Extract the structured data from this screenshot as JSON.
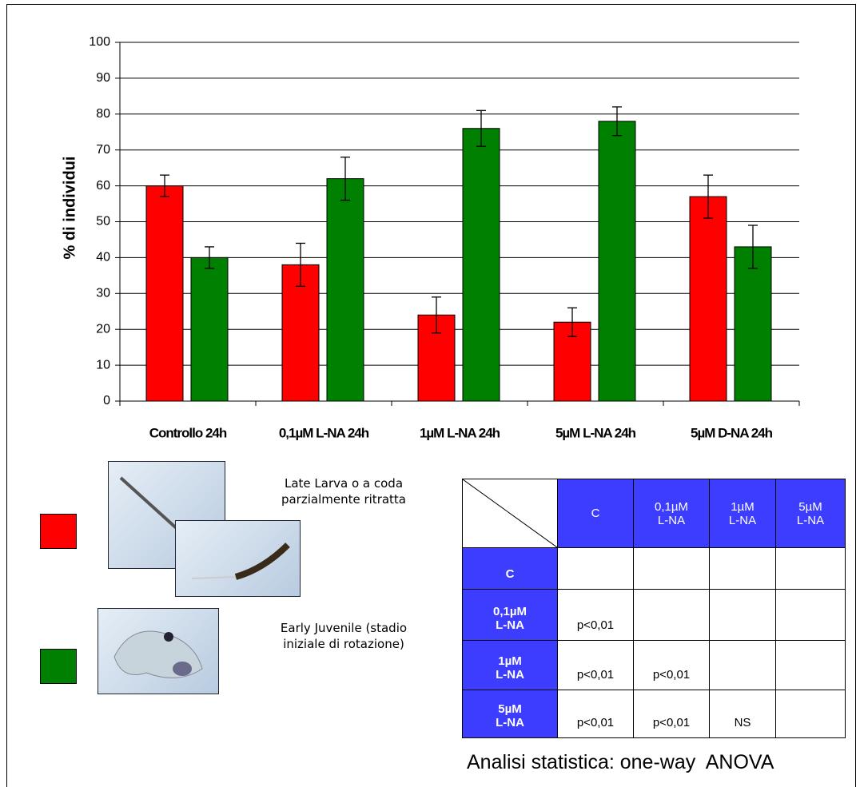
{
  "chart_data": {
    "type": "bar",
    "y_label": "% di individui",
    "categories": [
      "Controllo 24h",
      "0,1µM L-NA 24h",
      "1µM L-NA 24h",
      "5µM L-NA 24h",
      "5µM D-NA 24h"
    ],
    "series": [
      {
        "name": "Late Larva o a coda parzialmente ritratta",
        "color": "#ff0000",
        "values": [
          60,
          38,
          24,
          22,
          57
        ],
        "errors": [
          3,
          6,
          5,
          4,
          6
        ]
      },
      {
        "name": "Early Juvenile (stadio iniziale di rotazione)",
        "color": "#008000",
        "values": [
          40,
          62,
          76,
          78,
          43
        ],
        "errors": [
          3,
          6,
          5,
          4,
          6
        ]
      }
    ],
    "ylim": [
      0,
      100
    ],
    "yticks": [
      0,
      10,
      20,
      30,
      40,
      50,
      60,
      70,
      80,
      90,
      100
    ],
    "grid": true
  },
  "table": {
    "columns": [
      [
        "C"
      ],
      [
        "0,1µM",
        "L-NA"
      ],
      [
        "1µM",
        "L-NA"
      ],
      [
        "5µM",
        "L-NA"
      ]
    ],
    "rows": [
      {
        "header": [
          "C"
        ],
        "cells": [
          null,
          null,
          null,
          null
        ]
      },
      {
        "header": [
          "0,1µM",
          "L-NA"
        ],
        "cells": [
          "p<0,01",
          null,
          null,
          null
        ]
      },
      {
        "header": [
          "1µM",
          "L-NA"
        ],
        "cells": [
          "p<0,01",
          "p<0,01",
          null,
          null
        ]
      },
      {
        "header": [
          "5µM",
          "L-NA"
        ],
        "cells": [
          "p<0,01",
          "p<0,01",
          "NS",
          null
        ]
      }
    ]
  },
  "caption": "Analisi statistica: one-way  ANOVA"
}
